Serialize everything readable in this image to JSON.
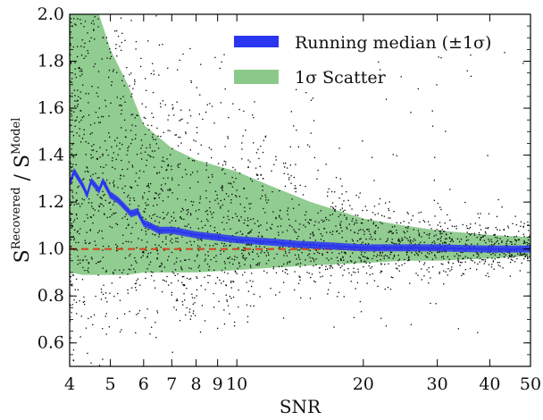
{
  "chart_data": {
    "type": "scatter",
    "xlabel": "SNR",
    "ylabel": {
      "main": "S",
      "sup1": "Recovered",
      "sep": " / ",
      "sup2": "Model"
    },
    "x_scale": "log",
    "xlim": [
      4,
      50
    ],
    "ylim": [
      0.5,
      2.0
    ],
    "x_ticks": [
      4,
      5,
      6,
      7,
      8,
      9,
      10,
      20,
      30,
      40,
      50
    ],
    "x_tick_labels": [
      "4",
      "5",
      "6",
      "7",
      "8",
      "9",
      "10",
      "20",
      "30",
      "40",
      "50"
    ],
    "y_ticks": [
      0.6,
      0.8,
      1.0,
      1.2,
      1.4,
      1.6,
      1.8,
      2.0
    ],
    "y_tick_labels": [
      "0.6",
      "0.8",
      "1.0",
      "1.2",
      "1.4",
      "1.6",
      "1.8",
      "2.0"
    ],
    "grid": false,
    "legend_position": "top-right",
    "legend": [
      {
        "label": "Running median (±1σ)",
        "kind": "line",
        "color": "#2a35f0"
      },
      {
        "label": "1σ Scatter",
        "kind": "patch",
        "color": "#8bc98b"
      }
    ],
    "scatter_color": "#000000",
    "scatter_sample_size": 2600,
    "band": {
      "name": "1σ Scatter",
      "color": "#8bc98b",
      "x": [
        4.0,
        4.3,
        4.5,
        4.7,
        5.0,
        5.5,
        6.0,
        7.0,
        8.0,
        10.0,
        12.0,
        15.0,
        20.0,
        25.0,
        30.0,
        40.0,
        50.0
      ],
      "upper": [
        2.0,
        2.0,
        2.0,
        2.0,
        1.85,
        1.7,
        1.53,
        1.43,
        1.38,
        1.33,
        1.27,
        1.2,
        1.13,
        1.1,
        1.08,
        1.06,
        1.05
      ],
      "lower": [
        0.9,
        0.89,
        0.89,
        0.89,
        0.89,
        0.89,
        0.9,
        0.9,
        0.9,
        0.91,
        0.92,
        0.93,
        0.94,
        0.95,
        0.95,
        0.96,
        0.97
      ]
    },
    "median": {
      "name": "Running median (±1σ)",
      "color": "#2a35f0",
      "x": [
        4.0,
        4.1,
        4.2,
        4.3,
        4.4,
        4.5,
        4.6,
        4.7,
        4.8,
        4.9,
        5.0,
        5.2,
        5.4,
        5.6,
        5.8,
        6.0,
        6.2,
        6.5,
        7.0,
        7.5,
        8.0,
        9.0,
        10.0,
        12.0,
        14.0,
        16.0,
        18.0,
        20.0,
        25.0,
        30.0,
        35.0,
        40.0,
        45.0,
        50.0
      ],
      "y": [
        1.28,
        1.33,
        1.3,
        1.27,
        1.23,
        1.29,
        1.27,
        1.25,
        1.29,
        1.26,
        1.23,
        1.21,
        1.18,
        1.15,
        1.16,
        1.11,
        1.1,
        1.08,
        1.08,
        1.07,
        1.06,
        1.05,
        1.04,
        1.03,
        1.02,
        1.015,
        1.01,
        1.005,
        1.005,
        1.005,
        1.002,
        1.0,
        1.0,
        1.0
      ],
      "band_halfwidth": 0.015
    },
    "reference_line": {
      "y": 1.0,
      "style": "dashed",
      "color": "#d24a1e"
    }
  }
}
